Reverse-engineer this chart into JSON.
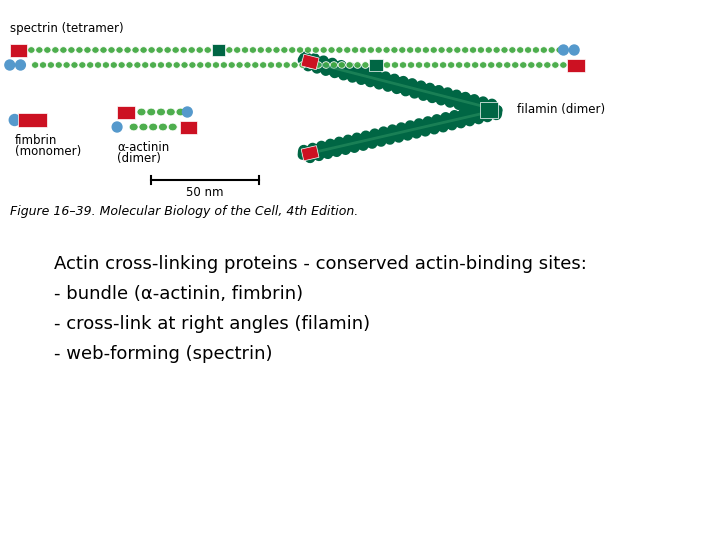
{
  "bg_color": "#ffffff",
  "title_text": "Actin cross-linking proteins - conserved actin-binding sites:",
  "bullet1": "- bundle (α-actinin, fimbrin)",
  "bullet2": "- cross-link at right angles (filamin)",
  "bullet3": "- web-forming (spectrin)",
  "fig_caption": "Figure 16–39. Molecular Biology of the Cell, 4th Edition.",
  "text_font_size": 13,
  "caption_font_size": 9,
  "red_color": "#cc1122",
  "green_color": "#44aa44",
  "dark_green": "#006644",
  "blue_color": "#5599cc",
  "light_green": "#99cc44"
}
